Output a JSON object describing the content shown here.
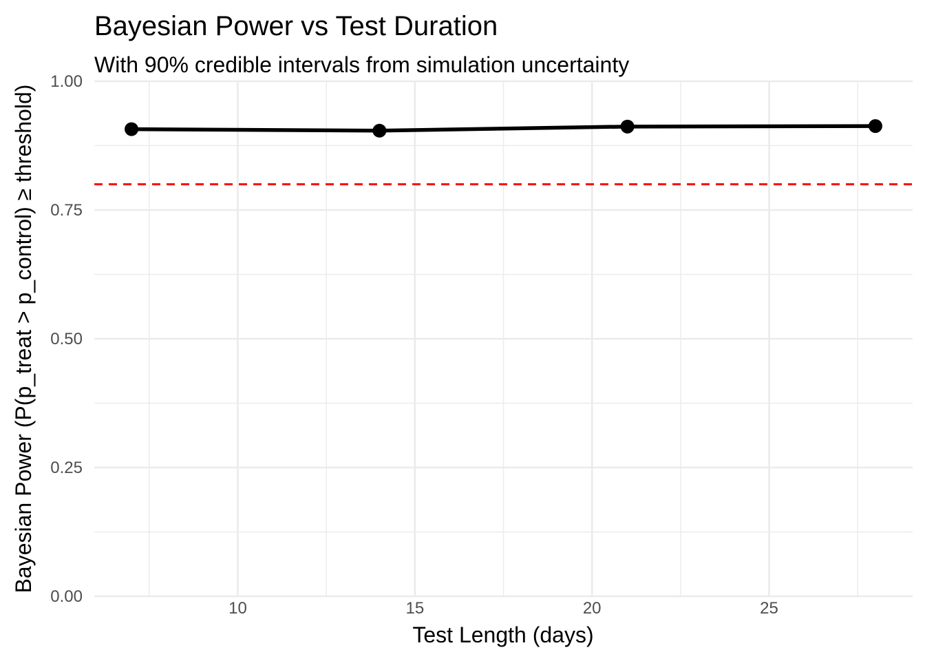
{
  "chart_data": {
    "type": "line",
    "title": "Bayesian Power vs Test Duration",
    "subtitle": "With 90% credible intervals from simulation uncertainty",
    "xlabel": "Test Length (days)",
    "ylabel": "Bayesian Power (P(p_treat > p_control) ≥ threshold)",
    "x": [
      7,
      14,
      21,
      28
    ],
    "series": [
      {
        "values": [
          0.907,
          0.904,
          0.912,
          0.913
        ],
        "color": "#000000"
      }
    ],
    "threshold": {
      "value": 0.8,
      "color": "#ff0000",
      "style": "dashed"
    },
    "xlim": [
      5.95,
      29.05
    ],
    "ylim": [
      0,
      1.0
    ],
    "x_ticks": [
      10,
      15,
      20,
      25
    ],
    "x_tick_labels": [
      "10",
      "15",
      "20",
      "25"
    ],
    "y_ticks": [
      0,
      0.25,
      0.5,
      0.75,
      1.0
    ],
    "y_tick_labels": [
      "0.00",
      "0.25",
      "0.50",
      "0.75",
      "1.00"
    ],
    "grid": true,
    "legend": "none"
  }
}
